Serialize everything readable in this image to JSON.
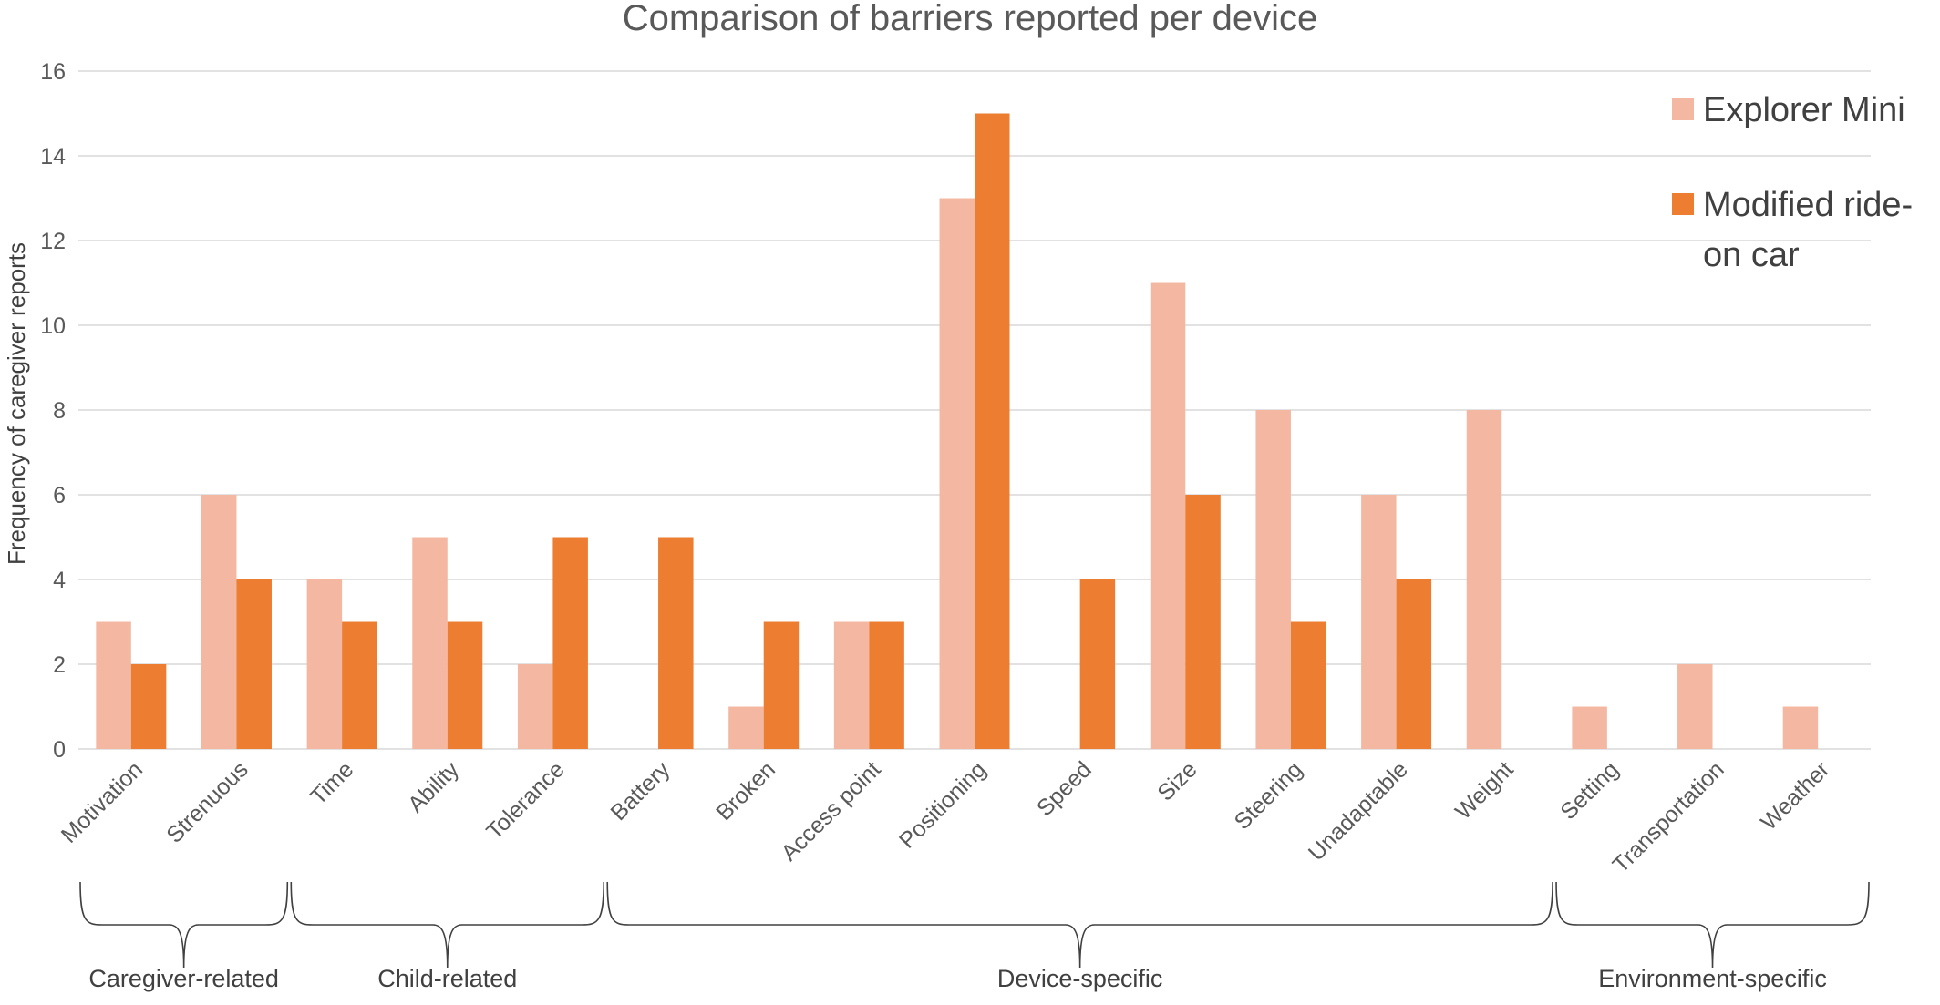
{
  "chart_data": {
    "type": "bar",
    "title": "Comparison of barriers reported per device",
    "xlabel": "",
    "ylabel": "Frequency of caregiver reports",
    "ylim": [
      0,
      16
    ],
    "yticks": [
      0,
      2,
      4,
      6,
      8,
      10,
      12,
      14,
      16
    ],
    "grid": true,
    "legend_position": "top-right",
    "categories": [
      "Motivation",
      "Strenuous",
      "Time",
      "Ability",
      "Tolerance",
      "Battery",
      "Broken",
      "Access point",
      "Positioning",
      "Speed",
      "Size",
      "Steering",
      "Unadaptable",
      "Weight",
      "Setting",
      "Transportation",
      "Weather"
    ],
    "series": [
      {
        "name": "Explorer Mini",
        "color": "#f4b8a2",
        "values": [
          3,
          6,
          4,
          5,
          2,
          0,
          1,
          3,
          13,
          0,
          11,
          8,
          6,
          8,
          1,
          2,
          1
        ]
      },
      {
        "name": "Modified ride-on car",
        "color": "#ed7d31",
        "values": [
          2,
          4,
          3,
          3,
          5,
          5,
          3,
          3,
          15,
          4,
          6,
          3,
          4,
          0,
          0,
          0,
          0
        ]
      }
    ],
    "legend_lines": [
      [
        "Explorer Mini"
      ],
      [
        "Modified ride-",
        "on car"
      ]
    ],
    "groups": [
      {
        "label": "Caregiver-related",
        "from": 0,
        "to": 1
      },
      {
        "label": "Child-related",
        "from": 2,
        "to": 4
      },
      {
        "label": "Device-specific",
        "from": 5,
        "to": 13
      },
      {
        "label": "Environment-specific",
        "from": 14,
        "to": 16
      }
    ]
  }
}
